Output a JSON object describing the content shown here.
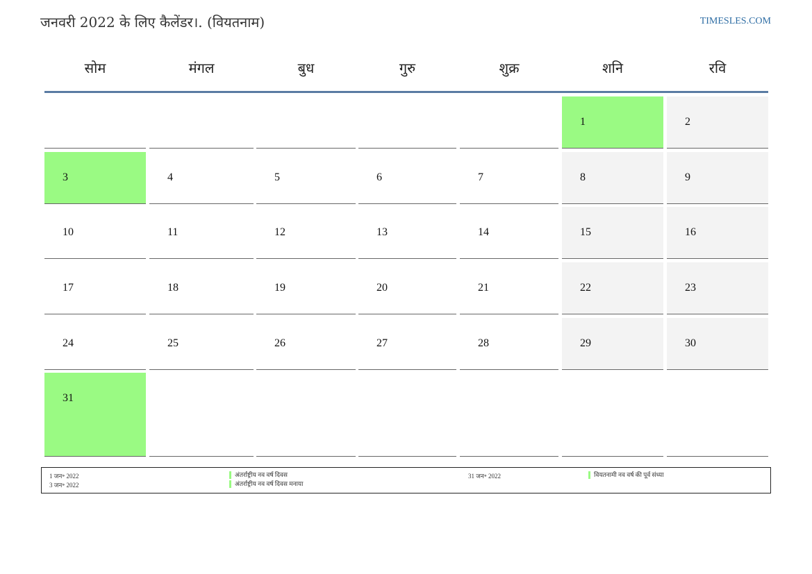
{
  "header": {
    "title": "जनवरी 2022 के लिए कैलेंडर।. (वियतनाम)",
    "site": "TIMESLES.COM"
  },
  "weekdays": [
    "सोम",
    "मंगल",
    "बुध",
    "गुरु",
    "शुक्र",
    "शनि",
    "रवि"
  ],
  "weeks": [
    [
      "",
      "",
      "",
      "",
      "",
      "1",
      "2"
    ],
    [
      "3",
      "4",
      "5",
      "6",
      "7",
      "8",
      "9"
    ],
    [
      "10",
      "11",
      "12",
      "13",
      "14",
      "15",
      "16"
    ],
    [
      "17",
      "18",
      "19",
      "20",
      "21",
      "22",
      "23"
    ],
    [
      "24",
      "25",
      "26",
      "27",
      "28",
      "29",
      "30"
    ],
    [
      "31",
      "",
      "",
      "",
      "",
      "",
      ""
    ]
  ],
  "holiday_days": [
    "1",
    "3",
    "31"
  ],
  "colors": {
    "holiday": "#9afa83",
    "weekend": "#f3f3f3",
    "header_rule": "#5a7ba3",
    "link": "#2e6da4"
  },
  "legend": {
    "left": [
      {
        "date": "1 जन॰ 2022",
        "name": "अंतर्राष्ट्रीय नव वर्ष दिवस"
      },
      {
        "date": "3 जन॰ 2022",
        "name": "अंतर्राष्ट्रीय नव वर्ष दिवस मनाया"
      }
    ],
    "right": [
      {
        "date": "31 जन॰ 2022",
        "name": "वियतनामी नव वर्ष की पूर्व संध्या"
      }
    ]
  }
}
